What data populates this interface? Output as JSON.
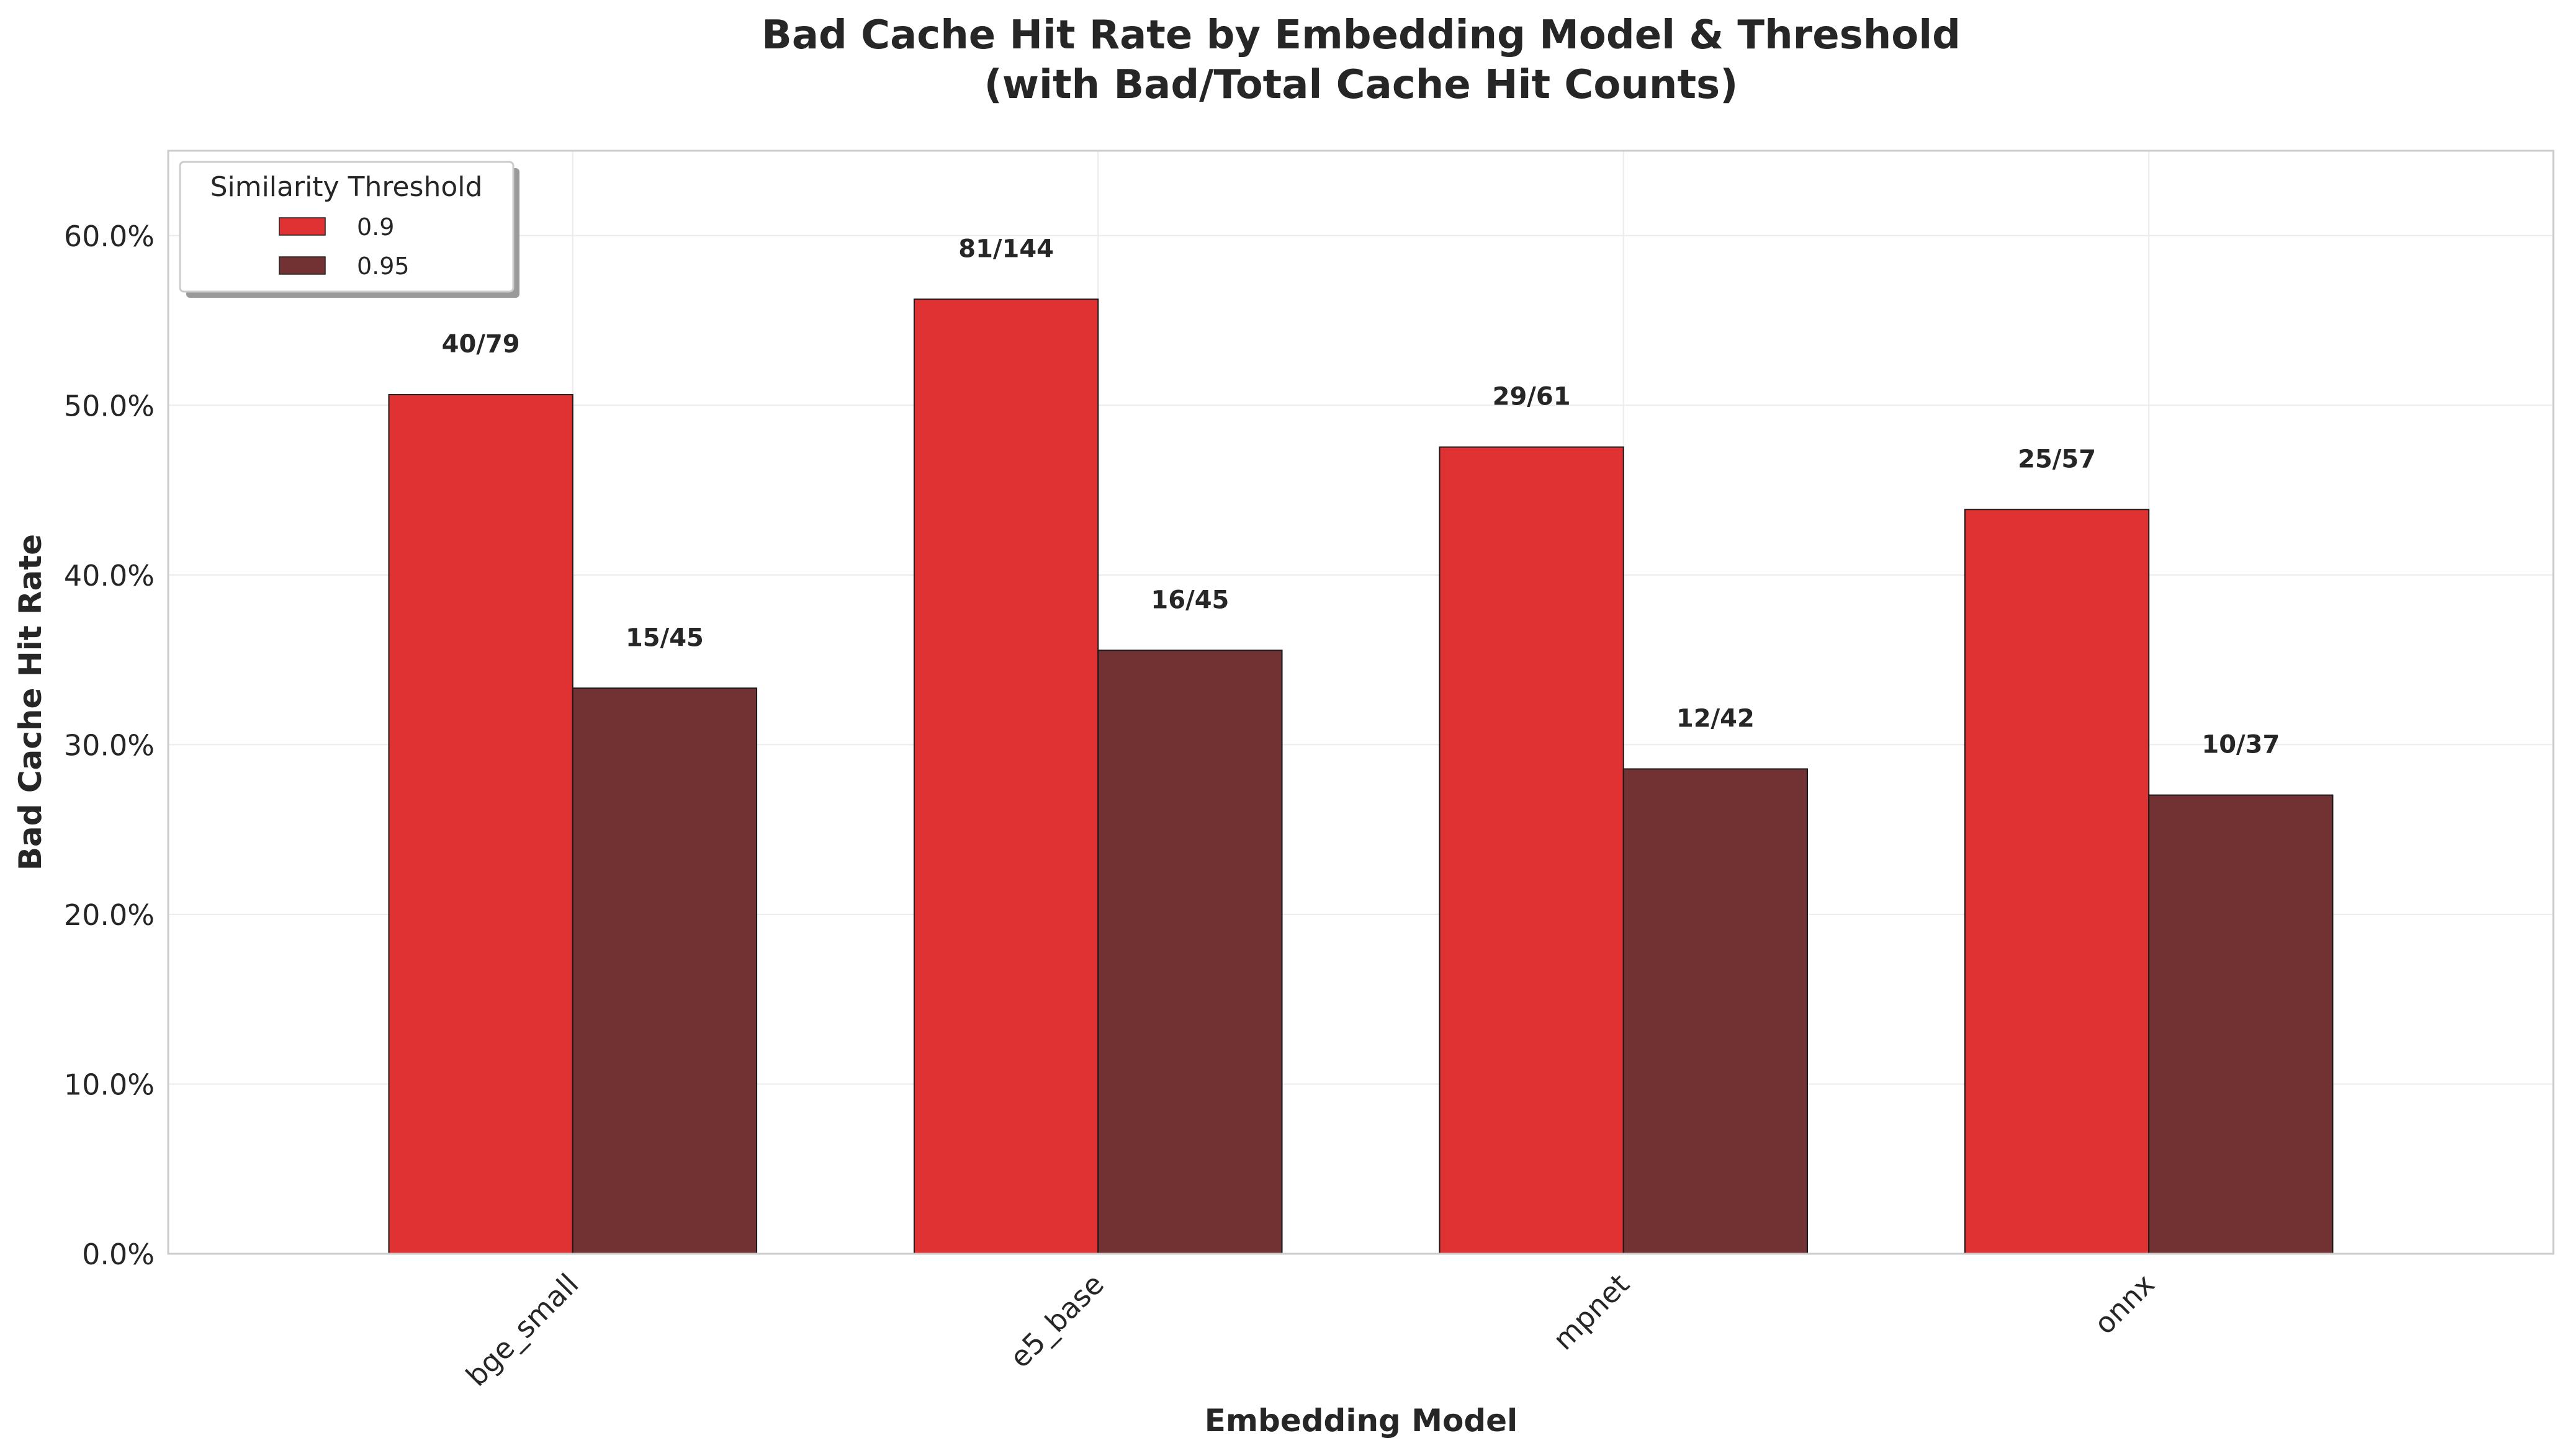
{
  "chart_data": {
    "type": "bar",
    "title_line1": "Bad Cache Hit Rate by Embedding Model & Threshold",
    "title_line2": "(with Bad/Total Cache Hit Counts)",
    "xlabel": "Embedding Model",
    "ylabel": "Bad Cache Hit Rate",
    "categories": [
      "bge_small",
      "e5_base",
      "mpnet",
      "onnx"
    ],
    "ylim": [
      0,
      0.65
    ],
    "yticks": [
      0,
      0.1,
      0.2,
      0.3,
      0.4,
      0.5,
      0.6
    ],
    "ytick_labels": [
      "0.0%",
      "10.0%",
      "20.0%",
      "30.0%",
      "40.0%",
      "50.0%",
      "60.0%"
    ],
    "grid": true,
    "legend": {
      "title": "Similarity Threshold",
      "placement": "top-left"
    },
    "series": [
      {
        "name": "0.9",
        "color": "#e03232",
        "values": [
          0.5063,
          0.5625,
          0.4754,
          0.4386
        ],
        "labels": [
          "40/79",
          "81/144",
          "29/61",
          "25/57"
        ]
      },
      {
        "name": "0.95",
        "color": "#723133",
        "values": [
          0.3333,
          0.3556,
          0.2857,
          0.2703
        ],
        "labels": [
          "15/45",
          "16/45",
          "12/42",
          "10/37"
        ]
      }
    ]
  }
}
